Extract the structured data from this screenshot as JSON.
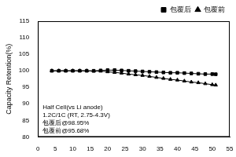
{
  "chart_data": {
    "type": "line",
    "y_label": "Capacity Retention(%)",
    "annotations": [
      "Half Cell(vs Li anode)",
      "1.2C/1C (RT, 2.75-4.3V)",
      "包覆后@98.95%",
      "包覆前@95.68%"
    ],
    "x": [
      4,
      6,
      8,
      10,
      12,
      14,
      16,
      18,
      20,
      22,
      24,
      26,
      28,
      30,
      32,
      34,
      36,
      38,
      40,
      42,
      44,
      46,
      48,
      50,
      51
    ],
    "series": [
      {
        "name": "包覆后",
        "color": "#000000",
        "marker": "square",
        "line_style": "solid",
        "values": [
          100.0,
          100.0,
          100.0,
          100.0,
          100.0,
          100.0,
          100.0,
          100.1,
          100.2,
          100.2,
          100.1,
          100.0,
          99.9,
          99.8,
          99.7,
          99.6,
          99.5,
          99.4,
          99.4,
          99.3,
          99.2,
          99.1,
          99.0,
          99.0,
          98.95
        ]
      },
      {
        "name": "包覆前",
        "color": "#000000",
        "marker": "triangle",
        "line_style": "solid",
        "values": [
          100.0,
          100.0,
          100.0,
          100.0,
          100.0,
          100.0,
          99.9,
          99.9,
          99.7,
          99.5,
          99.3,
          99.0,
          98.8,
          98.6,
          98.3,
          98.0,
          97.7,
          97.4,
          97.2,
          96.9,
          96.6,
          96.4,
          96.1,
          95.8,
          95.68
        ]
      }
    ],
    "xlim": [
      0,
      55
    ],
    "xticks": [
      0,
      5,
      10,
      15,
      20,
      25,
      30,
      35,
      40,
      45,
      50,
      55
    ],
    "ylim": [
      80,
      115
    ],
    "yticks": [
      80,
      85,
      90,
      95,
      100,
      105,
      110,
      115
    ],
    "grid": false,
    "legend": "upper right"
  }
}
